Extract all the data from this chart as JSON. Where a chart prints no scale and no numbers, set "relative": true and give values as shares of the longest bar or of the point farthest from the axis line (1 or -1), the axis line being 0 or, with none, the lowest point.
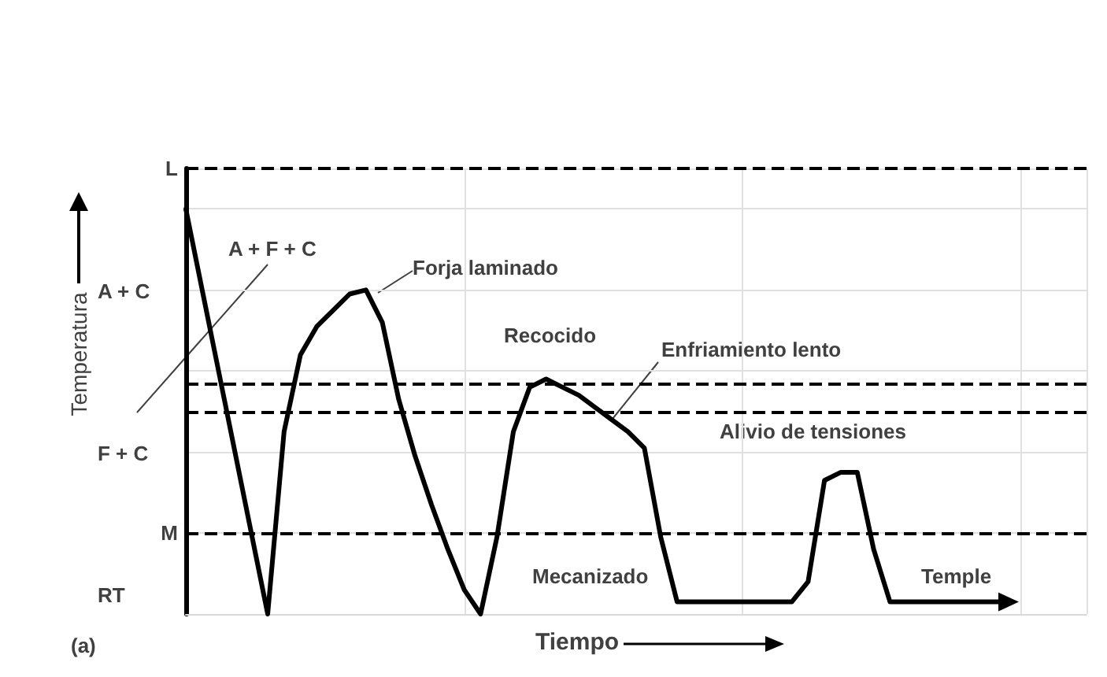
{
  "chart_data": {
    "type": "line",
    "relative": true,
    "xlabel": "Tiempo",
    "ylabel": "Temperatura",
    "categories": [
      null,
      null,
      null,
      null,
      null,
      null,
      null,
      null,
      null,
      null,
      null,
      null,
      null,
      null,
      null,
      null,
      null,
      null,
      null,
      null,
      null,
      null,
      null,
      null,
      null,
      null,
      null,
      null,
      null,
      null,
      null,
      null,
      null,
      null,
      null,
      null,
      null,
      null,
      null,
      null,
      null,
      null,
      null,
      null,
      null,
      null,
      null,
      null,
      null,
      null,
      null,
      null,
      null,
      null,
      null,
      null
    ],
    "series": [
      {
        "color": "#000000",
        "values": [
          1,
          0.8,
          0.6,
          0.4,
          0.2,
          0,
          0.45,
          0.64,
          0.71,
          0.75,
          0.79,
          0.8,
          0.72,
          0.53,
          0.39,
          0.27,
          0.16,
          0.06,
          0,
          0.19,
          0.45,
          0.56,
          0.58,
          0.56,
          0.54,
          0.51,
          0.48,
          0.45,
          0.41,
          0.19,
          0.03,
          0.03,
          0.03,
          0.03,
          0.03,
          0.03,
          0.03,
          0.03,
          0.08,
          0.33,
          0.35,
          0.35,
          0.16,
          0.03,
          0.03,
          0.03,
          0.03,
          0.03,
          0.03,
          0.03,
          0.03,
          null,
          null,
          null,
          null,
          null
        ]
      }
    ],
    "ref_lines": [
      {
        "axis": "y",
        "value": 1.1,
        "label": "L",
        "line_style": "dashed",
        "color": "#000000"
      },
      {
        "axis": "y",
        "value": 0.57,
        "label": null,
        "line_style": "dashed",
        "color": "#000000"
      },
      {
        "axis": "y",
        "value": 0.5,
        "label": null,
        "line_style": "dashed",
        "color": "#000000"
      },
      {
        "axis": "y",
        "value": 0.2,
        "label": "M",
        "line_style": "dashed",
        "color": "#000000"
      }
    ],
    "annotations": [
      "A + C",
      "F + C",
      "RT",
      "A + F + C",
      "Forja laminado",
      "Recocido",
      "Enfriamiento lento",
      "Alivio de tensiones",
      "Mecanizado",
      "Temple",
      "(a)"
    ],
    "grid": true,
    "marker": "none",
    "line_style": "solid"
  }
}
